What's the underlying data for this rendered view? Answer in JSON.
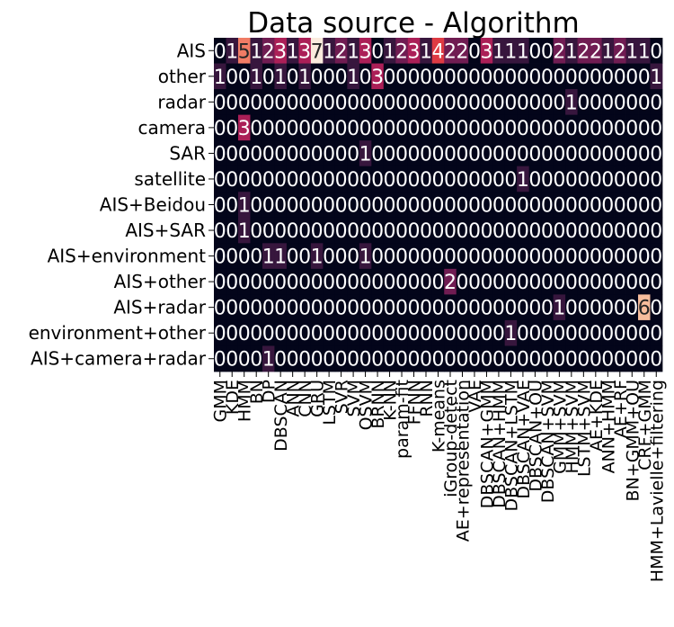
{
  "chart_data": {
    "type": "heatmap",
    "title": "Data source - Algorithm",
    "xlabel": "",
    "ylabel": "",
    "rows": [
      "AIS",
      "other",
      "radar",
      "camera",
      "SAR",
      "satellite",
      "AIS+Beidou",
      "AIS+SAR",
      "AIS+environment",
      "AIS+other",
      "AIS+radar",
      "environment+other",
      "AIS+camera+radar"
    ],
    "columns": [
      "GMM",
      "KDE",
      "HMM",
      "BN",
      "DP",
      "DBSCAN",
      "ANN",
      "CNN",
      "GRU",
      "LSTM",
      "SVR",
      "SVM",
      "OSVM",
      "BRNN",
      "K-NN",
      "param-fit",
      "FFNN",
      "RNN",
      "K-means",
      "iGroup-detect",
      "AE+representation",
      "VAE",
      "DBSCAN+GMM",
      "DBSCAN+HMM",
      "DBSCAN+LSTM",
      "DBSCAN+VAE",
      "DBSCAN+OU",
      "DBSCAN+SVM",
      "GMM+SVM",
      "HMM+SVM",
      "LSTM+SVM",
      "AE+KDE",
      "ANN+HMM",
      "AE+RF",
      "BN+GMM+OU",
      "CRF+GMM",
      "HMM+Lavielle+filtering"
    ],
    "values": [
      [
        0,
        1,
        5,
        1,
        2,
        3,
        1,
        3,
        7,
        1,
        2,
        1,
        3,
        0,
        1,
        2,
        3,
        1,
        4,
        2,
        2,
        0,
        3,
        1,
        1,
        1,
        0,
        0,
        2,
        1,
        2,
        2,
        1,
        2,
        1,
        1,
        0
      ],
      [
        1,
        0,
        0,
        1,
        0,
        1,
        0,
        1,
        0,
        0,
        0,
        1,
        0,
        3,
        0,
        0,
        0,
        0,
        0,
        0,
        0,
        0,
        0,
        0,
        0,
        0,
        0,
        0,
        0,
        0,
        0,
        0,
        0,
        0,
        0,
        0,
        1
      ],
      [
        0,
        0,
        0,
        0,
        0,
        0,
        0,
        0,
        0,
        0,
        0,
        0,
        0,
        0,
        0,
        0,
        0,
        0,
        0,
        0,
        0,
        0,
        0,
        0,
        0,
        0,
        0,
        0,
        0,
        1,
        0,
        0,
        0,
        0,
        0,
        0,
        0
      ],
      [
        0,
        0,
        3,
        0,
        0,
        0,
        0,
        0,
        0,
        0,
        0,
        0,
        0,
        0,
        0,
        0,
        0,
        0,
        0,
        0,
        0,
        0,
        0,
        0,
        0,
        0,
        0,
        0,
        0,
        0,
        0,
        0,
        0,
        0,
        0,
        0,
        0
      ],
      [
        0,
        0,
        0,
        0,
        0,
        0,
        0,
        0,
        0,
        0,
        0,
        0,
        1,
        0,
        0,
        0,
        0,
        0,
        0,
        0,
        0,
        0,
        0,
        0,
        0,
        0,
        0,
        0,
        0,
        0,
        0,
        0,
        0,
        0,
        0,
        0,
        0
      ],
      [
        0,
        0,
        0,
        0,
        0,
        0,
        0,
        0,
        0,
        0,
        0,
        0,
        0,
        0,
        0,
        0,
        0,
        0,
        0,
        0,
        0,
        0,
        0,
        0,
        0,
        1,
        0,
        0,
        0,
        0,
        0,
        0,
        0,
        0,
        0,
        0,
        0
      ],
      [
        0,
        0,
        1,
        0,
        0,
        0,
        0,
        0,
        0,
        0,
        0,
        0,
        0,
        0,
        0,
        0,
        0,
        0,
        0,
        0,
        0,
        0,
        0,
        0,
        0,
        0,
        0,
        0,
        0,
        0,
        0,
        0,
        0,
        0,
        0,
        0,
        0
      ],
      [
        0,
        0,
        1,
        0,
        0,
        0,
        0,
        0,
        0,
        0,
        0,
        0,
        0,
        0,
        0,
        0,
        0,
        0,
        0,
        0,
        0,
        0,
        0,
        0,
        0,
        0,
        0,
        0,
        0,
        0,
        0,
        0,
        0,
        0,
        0,
        0,
        0
      ],
      [
        0,
        0,
        0,
        0,
        1,
        1,
        0,
        0,
        1,
        0,
        0,
        0,
        1,
        0,
        0,
        0,
        0,
        0,
        0,
        0,
        0,
        0,
        0,
        0,
        0,
        0,
        0,
        0,
        0,
        0,
        0,
        0,
        0,
        0,
        0,
        0,
        0
      ],
      [
        0,
        0,
        0,
        0,
        0,
        0,
        0,
        0,
        0,
        0,
        0,
        0,
        0,
        0,
        0,
        0,
        0,
        0,
        0,
        2,
        0,
        0,
        0,
        0,
        0,
        0,
        0,
        0,
        0,
        0,
        0,
        0,
        0,
        0,
        0,
        0,
        0
      ],
      [
        0,
        0,
        0,
        0,
        0,
        0,
        0,
        0,
        0,
        0,
        0,
        0,
        0,
        0,
        0,
        0,
        0,
        0,
        0,
        0,
        0,
        0,
        0,
        0,
        0,
        0,
        0,
        0,
        1,
        0,
        0,
        0,
        0,
        0,
        0,
        6,
        0
      ],
      [
        0,
        0,
        0,
        0,
        0,
        0,
        0,
        0,
        0,
        0,
        0,
        0,
        0,
        0,
        0,
        0,
        0,
        0,
        0,
        0,
        0,
        0,
        0,
        0,
        1,
        0,
        0,
        0,
        0,
        0,
        0,
        0,
        0,
        0,
        0,
        0,
        0
      ],
      [
        0,
        0,
        0,
        0,
        1,
        0,
        0,
        0,
        0,
        0,
        0,
        0,
        0,
        0,
        0,
        0,
        0,
        0,
        0,
        0,
        0,
        0,
        0,
        0,
        0,
        0,
        0,
        0,
        0,
        0,
        0,
        0,
        0,
        0,
        0,
        0,
        0
      ]
    ],
    "vmin": 0,
    "vmax": 7,
    "colormap": [
      "#03051a",
      "#4c1d4b",
      "#a11a5b",
      "#e83f3f",
      "#f6aa82",
      "#faebdd"
    ],
    "annot_light": "#ffffff",
    "annot_dark": "#262626",
    "grid": false,
    "legend": "none"
  }
}
